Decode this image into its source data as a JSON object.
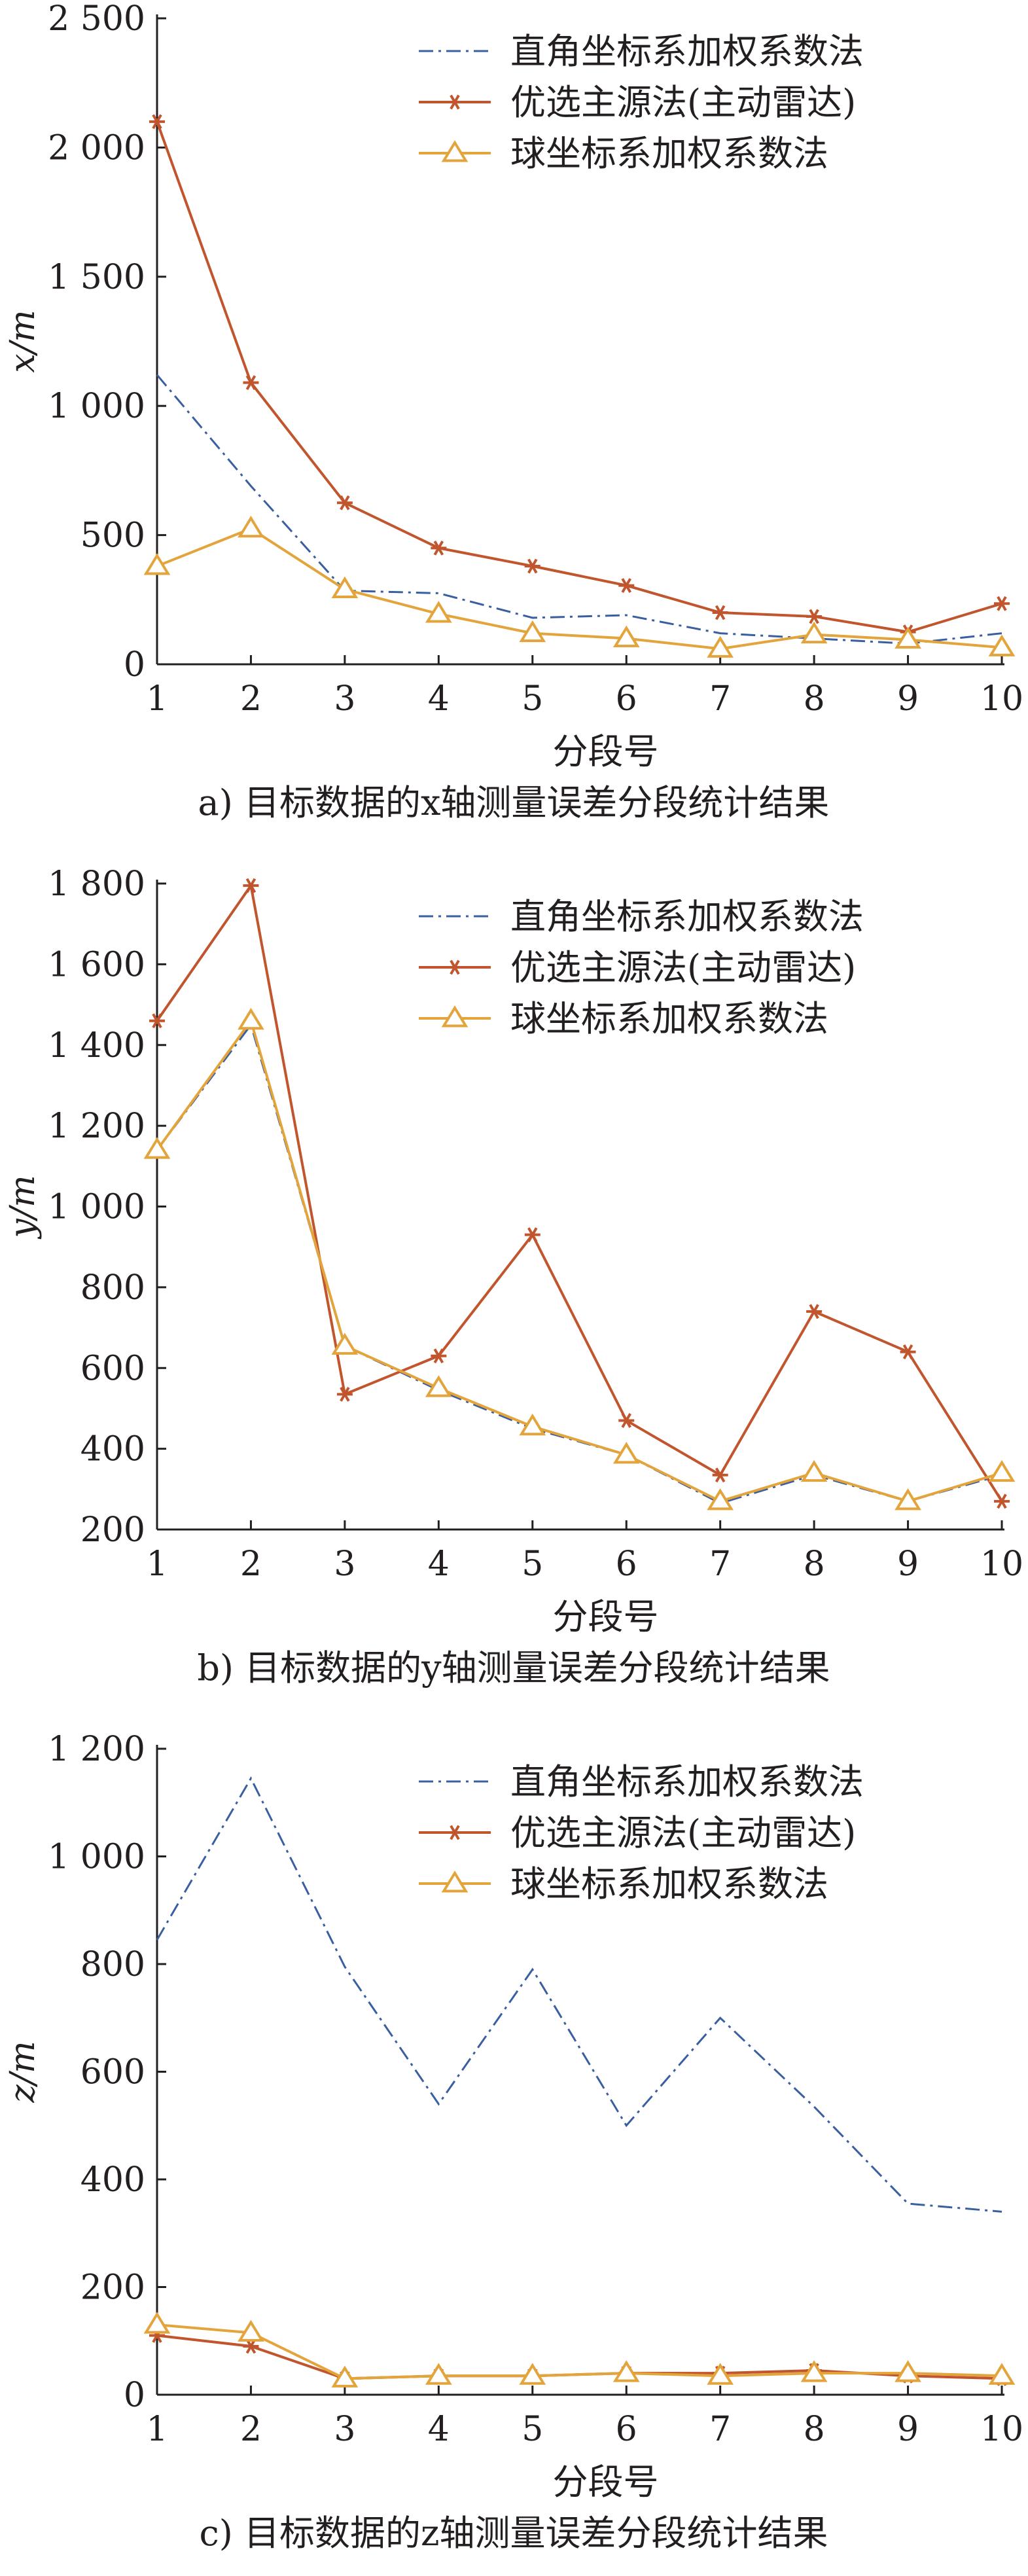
{
  "legend_labels": [
    "直角坐标系加权系数法",
    "优选主源法(主动雷达)",
    "球坐标系加权系数法"
  ],
  "colors": {
    "rect": "#3a5fa0",
    "radar": "#c1552d",
    "sphere": "#e2a43b",
    "axis": "#231f20",
    "text": "#231f20"
  },
  "chart_data": [
    {
      "type": "line",
      "caption": "a) 目标数据的x轴测量误差分段统计结果",
      "xlabel": "分段号",
      "ylabel": "x/m",
      "x": [
        1,
        2,
        3,
        4,
        5,
        6,
        7,
        8,
        9,
        10
      ],
      "xlim": [
        1,
        10
      ],
      "ylim": [
        0,
        2500
      ],
      "yticks": [
        0,
        500,
        1000,
        1500,
        2000,
        2500
      ],
      "ytick_labels": [
        "0",
        "500",
        "1 000",
        "1 500",
        "2 000",
        "2 500"
      ],
      "legend_position": "top-right",
      "series": [
        {
          "name": "直角坐标系加权系数法",
          "values": [
            1120,
            690,
            285,
            275,
            180,
            190,
            120,
            100,
            80,
            120
          ]
        },
        {
          "name": "优选主源法(主动雷达)",
          "values": [
            2100,
            1090,
            625,
            450,
            380,
            305,
            200,
            185,
            125,
            235
          ]
        },
        {
          "name": "球坐标系加权系数法",
          "values": [
            380,
            525,
            290,
            195,
            120,
            100,
            60,
            115,
            95,
            65
          ]
        }
      ]
    },
    {
      "type": "line",
      "caption": "b) 目标数据的y轴测量误差分段统计结果",
      "xlabel": "分段号",
      "ylabel": "y/m",
      "x": [
        1,
        2,
        3,
        4,
        5,
        6,
        7,
        8,
        9,
        10
      ],
      "xlim": [
        1,
        10
      ],
      "ylim": [
        200,
        1800
      ],
      "yticks": [
        200,
        400,
        600,
        800,
        1000,
        1200,
        1400,
        1600,
        1800
      ],
      "ytick_labels": [
        "200",
        "400",
        "600",
        "800",
        "1 000",
        "1 200",
        "1 400",
        "1 600",
        "1 800"
      ],
      "legend_position": "top-right",
      "series": [
        {
          "name": "直角坐标系加权系数法",
          "values": [
            1140,
            1450,
            655,
            545,
            450,
            385,
            265,
            335,
            270,
            335
          ]
        },
        {
          "name": "优选主源法(主动雷达)",
          "values": [
            1460,
            1795,
            535,
            630,
            930,
            470,
            335,
            740,
            640,
            270
          ]
        },
        {
          "name": "球坐标系加权系数法",
          "values": [
            1140,
            1460,
            655,
            550,
            455,
            385,
            270,
            340,
            270,
            340
          ]
        }
      ]
    },
    {
      "type": "line",
      "caption": "c) 目标数据的z轴测量误差分段统计结果",
      "xlabel": "分段号",
      "ylabel": "z/m",
      "x": [
        1,
        2,
        3,
        4,
        5,
        6,
        7,
        8,
        9,
        10
      ],
      "xlim": [
        1,
        10
      ],
      "ylim": [
        0,
        1200
      ],
      "yticks": [
        0,
        200,
        400,
        600,
        800,
        1000,
        1200
      ],
      "ytick_labels": [
        "0",
        "200",
        "400",
        "600",
        "800",
        "1 000",
        "1 200"
      ],
      "legend_position": "top-right",
      "series": [
        {
          "name": "直角坐标系加权系数法",
          "values": [
            845,
            1145,
            795,
            540,
            790,
            500,
            700,
            535,
            355,
            340
          ]
        },
        {
          "name": "优选主源法(主动雷达)",
          "values": [
            110,
            90,
            30,
            35,
            35,
            40,
            40,
            45,
            35,
            30
          ]
        },
        {
          "name": "球坐标系加权系数法",
          "values": [
            130,
            115,
            30,
            35,
            35,
            40,
            35,
            40,
            40,
            35
          ]
        }
      ]
    }
  ]
}
